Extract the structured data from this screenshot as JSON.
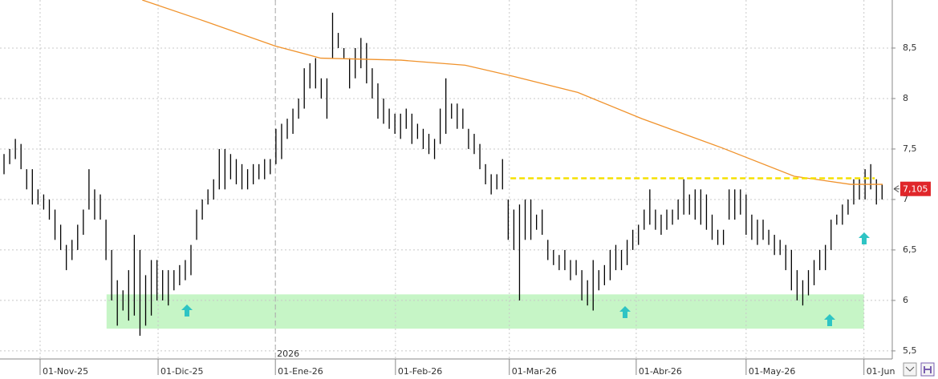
{
  "chart_data": {
    "type": "ohlc",
    "high": [
      7.45,
      7.5,
      7.6,
      7.55,
      7.3,
      7.3,
      7.1,
      7.05,
      7.0,
      6.9,
      6.75,
      6.55,
      6.6,
      6.75,
      6.9,
      7.3,
      7.1,
      7.05,
      6.8,
      6.5,
      6.2,
      6.1,
      6.3,
      6.65,
      6.5,
      6.25,
      6.4,
      6.4,
      6.3,
      6.3,
      6.3,
      6.35,
      6.4,
      6.55,
      6.9,
      7.0,
      7.1,
      7.2,
      7.5,
      7.5,
      7.45,
      7.4,
      7.35,
      7.3,
      7.35,
      7.35,
      7.4,
      7.4,
      7.7,
      7.75,
      7.8,
      7.9,
      8.0,
      8.3,
      8.35,
      8.4,
      8.2,
      8.2,
      8.85,
      8.65,
      8.5,
      8.4,
      8.5,
      8.6,
      8.55,
      8.3,
      8.15,
      8.0,
      7.9,
      7.85,
      7.85,
      7.9,
      7.85,
      7.75,
      7.7,
      7.65,
      7.6,
      7.9,
      8.2,
      7.95,
      7.95,
      7.9,
      7.7,
      7.65,
      7.55,
      7.35,
      7.25,
      7.25,
      7.4,
      7.0,
      6.9,
      6.95,
      7.0,
      7.0,
      6.85,
      6.9,
      6.6,
      6.5,
      6.45,
      6.5,
      6.4,
      6.4,
      6.3,
      6.2,
      6.4,
      6.3,
      6.35,
      6.5,
      6.55,
      6.5,
      6.6,
      6.7,
      6.75,
      6.9,
      7.1,
      6.9,
      6.85,
      6.9,
      6.9,
      7.0,
      7.2,
      7.05,
      7.1,
      7.1,
      7.05,
      6.85,
      6.7,
      6.7,
      7.1,
      7.1,
      7.1,
      7.05,
      6.85,
      6.8,
      6.8,
      6.7,
      6.65,
      6.6,
      6.55,
      6.5,
      6.3,
      6.2,
      6.3,
      6.4,
      6.5,
      6.55,
      6.8,
      6.85,
      6.95,
      7.0,
      7.2,
      7.2,
      7.3,
      7.35,
      7.2,
      7.15
    ],
    "low": [
      7.25,
      7.35,
      7.4,
      7.3,
      7.1,
      6.95,
      6.95,
      6.9,
      6.8,
      6.6,
      6.5,
      6.3,
      6.4,
      6.5,
      6.65,
      6.9,
      6.8,
      6.8,
      6.4,
      6.0,
      5.75,
      5.9,
      5.8,
      5.85,
      5.65,
      5.75,
      5.85,
      6.0,
      6.0,
      5.95,
      6.1,
      6.15,
      6.2,
      6.25,
      6.6,
      6.8,
      6.95,
      7.0,
      7.1,
      7.1,
      7.2,
      7.15,
      7.1,
      7.1,
      7.15,
      7.2,
      7.2,
      7.25,
      7.35,
      7.4,
      7.6,
      7.65,
      7.8,
      7.9,
      8.1,
      8.1,
      8.0,
      7.8,
      8.4,
      8.5,
      8.4,
      8.1,
      8.2,
      8.3,
      8.15,
      8.0,
      7.8,
      7.75,
      7.7,
      7.65,
      7.6,
      7.7,
      7.55,
      7.6,
      7.5,
      7.45,
      7.4,
      7.55,
      7.65,
      7.8,
      7.7,
      7.7,
      7.5,
      7.45,
      7.3,
      7.15,
      7.05,
      7.1,
      7.1,
      6.6,
      6.5,
      6.0,
      6.6,
      6.6,
      6.7,
      6.65,
      6.4,
      6.35,
      6.3,
      6.3,
      6.2,
      6.25,
      6.0,
      5.95,
      5.9,
      6.1,
      6.15,
      6.2,
      6.3,
      6.3,
      6.35,
      6.5,
      6.55,
      6.7,
      6.75,
      6.7,
      6.65,
      6.7,
      6.75,
      6.8,
      6.85,
      6.85,
      6.8,
      6.75,
      6.7,
      6.6,
      6.55,
      6.55,
      6.8,
      6.8,
      6.85,
      6.65,
      6.6,
      6.55,
      6.6,
      6.55,
      6.45,
      6.45,
      6.3,
      6.1,
      6.0,
      5.95,
      6.05,
      6.15,
      6.3,
      6.3,
      6.5,
      6.75,
      6.75,
      6.85,
      6.95,
      7.0,
      7.0,
      7.1,
      6.95,
      7.0
    ],
    "bar_color": "#000000",
    "moving_average": {
      "color": "#f0922b",
      "x": [
        24.4,
        34.7,
        47.9,
        55.9,
        70.1,
        81.4,
        89.9,
        101.3,
        112.6,
        126.8,
        139.5,
        149.4,
        155.1
      ],
      "values": [
        8.976,
        8.78,
        8.52,
        8.4,
        8.38,
        8.33,
        8.22,
        8.06,
        7.8,
        7.51,
        7.23,
        7.15,
        7.15
      ]
    },
    "resistance": {
      "value": 7.21,
      "x": [
        89.4,
        153.7
      ],
      "color": "#f5e000"
    },
    "support_zone": {
      "low": 5.72,
      "high": 6.06,
      "x": [
        18.1,
        151.8
      ],
      "color": "#c6f5c6"
    },
    "last_price": {
      "value": 7.105,
      "label": "7,105"
    },
    "xlim": [
      -0.71,
      156.8
    ],
    "ylim": [
      5.42,
      8.976
    ],
    "yticks": [
      {
        "value": 5.5,
        "label": "5,5"
      },
      6,
      {
        "value": 6.5,
        "label": "6,5"
      },
      7,
      {
        "value": 7.5,
        "label": "7,5"
      },
      8,
      {
        "value": 8.5,
        "label": "8,5"
      }
    ],
    "xticks": [
      {
        "value": 6.37,
        "label": "01-Nov-25"
      },
      {
        "value": 27.2,
        "label": "01-Dic-25"
      },
      {
        "value": 47.9,
        "label": "01-Ene-26"
      },
      {
        "value": 69.1,
        "label": "01-Feb-26"
      },
      {
        "value": 89.2,
        "label": "01-Mar-26"
      },
      {
        "value": 111.6,
        "label": "01-Abr-26"
      },
      {
        "value": 131.0,
        "label": "01-May-26"
      },
      {
        "value": 151.8,
        "label": "01-Jun"
      }
    ],
    "year_marker": {
      "value": 47.9,
      "label": "2026"
    },
    "grid": true
  }
}
